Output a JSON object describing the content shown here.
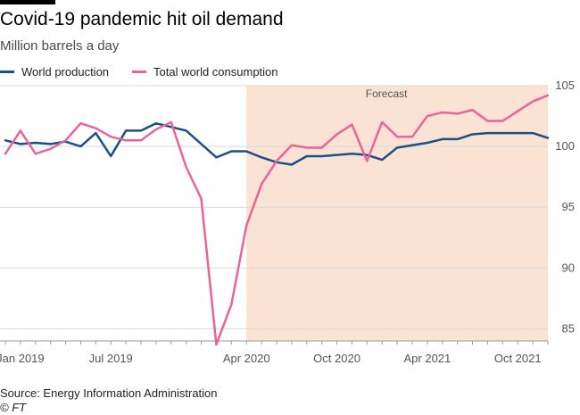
{
  "header": {
    "title": "Covid-19 pandemic hit oil demand",
    "subtitle": "Million barrels a day"
  },
  "footer": {
    "source": "Source: Energy Information Administration",
    "credit": "© FT"
  },
  "colors": {
    "production": "#1b4f8a",
    "consumption": "#e8649a",
    "forecast_band": "#fbe3d4",
    "grid": "#d9d9d9",
    "axis_text": "#555555"
  },
  "chart_data": {
    "type": "line",
    "title": "Covid-19 pandemic hit oil demand",
    "subtitle": "Million barrels a day",
    "xlabel": "",
    "ylabel": "Million barrels a day",
    "x_months": [
      "2018-12",
      "2019-01",
      "2019-02",
      "2019-03",
      "2019-04",
      "2019-05",
      "2019-06",
      "2019-07",
      "2019-08",
      "2019-09",
      "2019-10",
      "2019-11",
      "2019-12",
      "2020-01",
      "2020-02",
      "2020-03",
      "2020-04",
      "2020-05",
      "2020-06",
      "2020-07",
      "2020-08",
      "2020-09",
      "2020-10",
      "2020-11",
      "2020-12",
      "2021-01",
      "2021-02",
      "2021-03",
      "2021-04",
      "2021-05",
      "2021-06",
      "2021-07",
      "2021-08",
      "2021-09",
      "2021-10",
      "2021-11",
      "2021-12"
    ],
    "ylim": [
      84,
      105
    ],
    "yticks": [
      85,
      90,
      95,
      100,
      105
    ],
    "x_tick_labels": [
      {
        "label": "Jan 2019",
        "month_index": 1
      },
      {
        "label": "Jul 2019",
        "month_index": 7
      },
      {
        "label": "Apr 2020",
        "month_index": 16
      },
      {
        "label": "Oct 2020",
        "month_index": 22
      },
      {
        "label": "Apr 2021",
        "month_index": 28
      },
      {
        "label": "Oct 2021",
        "month_index": 34
      }
    ],
    "forecast": {
      "label": "Forecast",
      "start_index": 16
    },
    "legend_position": "top-left",
    "grid": true,
    "series": [
      {
        "name": "World production",
        "values": [
          100.5,
          100.2,
          100.3,
          100.2,
          100.4,
          100.0,
          101.1,
          99.2,
          101.3,
          101.3,
          101.9,
          101.6,
          101.3,
          100.2,
          99.1,
          99.6,
          99.6,
          99.1,
          98.7,
          98.5,
          99.2,
          99.2,
          99.3,
          99.4,
          99.3,
          98.9,
          99.9,
          100.1,
          100.3,
          100.6,
          100.6,
          101.0,
          101.1,
          101.1,
          101.1,
          101.1,
          100.7
        ]
      },
      {
        "name": "Total world consumption",
        "values": [
          99.4,
          101.3,
          99.4,
          99.8,
          100.5,
          101.9,
          101.5,
          100.8,
          100.5,
          100.5,
          101.4,
          102.0,
          98.3,
          95.7,
          83.7,
          87.0,
          93.5,
          96.9,
          98.8,
          100.1,
          99.9,
          99.9,
          101.0,
          101.8,
          98.8,
          102.0,
          100.8,
          100.8,
          102.5,
          102.8,
          102.7,
          103.0,
          102.1,
          102.1,
          102.9,
          103.7,
          104.2
        ]
      }
    ]
  }
}
